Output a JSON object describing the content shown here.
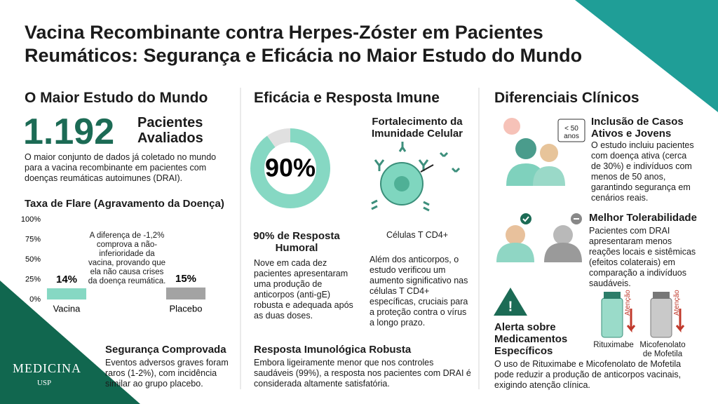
{
  "header": {
    "title": "Vacina Recombinante contra Herpes-Zóster em Pacientes Reumáticos: Segurança e Eficácia no Maior Estudo do Mundo"
  },
  "col1": {
    "heading": "O Maior Estudo do Mundo",
    "big_number": "1.192",
    "big_label": "Pacientes Avaliados",
    "text": "O maior conjunto de dados já coletado no mundo para a vacina recombinante em pacientes com doenças reumáticas autoimunes (DRAI).",
    "safety_title": "Segurança Comprovada",
    "safety_text": "Eventos adversos graves foram raros (1-2%), com incidência similar ao grupo placebo."
  },
  "col2": {
    "heading": "Eficácia e Resposta Imune",
    "humoral_title": "90% de Resposta Humoral",
    "humoral_text": "Nove em cada dez pacientes apresentaram uma produção de anticorpos (anti-gE) robusta e adequada após as duas doses.",
    "cell_title": "Fortalecimento da Imunidade Celular",
    "cell_label": "Células T CD4+",
    "cell_text": "Além dos anticorpos, o estudo verificou um aumento significativo nas células T CD4+ específicas, cruciais para a proteção contra o vírus a longo prazo.",
    "robust_title": "Resposta Imunológica Robusta",
    "robust_text": "Embora ligeiramente menor que nos controles saudáveis (99%), a resposta nos pacientes com DRAI é considerada altamente satisfatória."
  },
  "col3": {
    "heading": "Diferenciais Clínicos",
    "item1_title": "Inclusão de Casos Ativos e Jovens",
    "item1_badge": "< 50 anos",
    "item1_text": "O estudo incluiu pacientes com doença ativa (cerca de 30%) e indivíduos com menos de 50 anos, garantindo segurança em cenários reais.",
    "item2_title": "Melhor Tolerabilidade",
    "item2_text": "Pacientes com DRAI apresentaram menos reações locais e sistêmicas (efeitos colaterais) em comparação a indivíduos saudáveis.",
    "item3_title": "Alerta sobre Medicamentos Específicos",
    "vial1": "Rituximabe",
    "vial2": "Micofenolato de Mofetila",
    "warning": "Atenção",
    "item3_text": "O uso de Rituximabe e Micofenolato de Mofetila pode reduzir a produção de anticorpos vacinais, exigindo atenção clínica."
  },
  "logo": {
    "name": "MEDICINA",
    "sub": "USP"
  },
  "chart_data": [
    {
      "type": "bar",
      "title": "Taxa de Flare (Agravamento da Doença)",
      "annotation": "A diferença de -1,2% comprova a não-inferioridade da vacina, provando que ela não causa crises da doença reumática.",
      "categories": [
        "Vacina",
        "Placebo"
      ],
      "values": [
        14,
        15
      ],
      "value_labels": [
        "14%",
        "15%"
      ],
      "colors": [
        "#86d8c3",
        "#a3a3a3"
      ],
      "ylim": [
        0,
        100
      ],
      "yticks": [
        {
          "value": 0,
          "label": "0%"
        },
        {
          "value": 25,
          "label": "25%"
        },
        {
          "value": 50,
          "label": "50%"
        },
        {
          "value": 75,
          "label": "75%"
        },
        {
          "value": 100,
          "label": "100%"
        }
      ]
    },
    {
      "type": "donut",
      "values": [
        90,
        10
      ],
      "value_labels": [
        "90%",
        null
      ],
      "colors": [
        "#86d8c3",
        "#e0e0e0"
      ]
    }
  ]
}
